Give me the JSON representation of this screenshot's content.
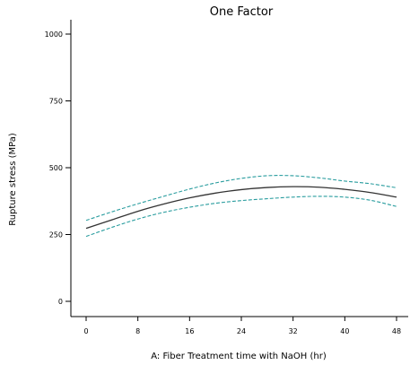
{
  "chart_data": {
    "type": "line",
    "title": "One Factor",
    "xlabel": "A: Fiber Treatment time with NaOH (hr)",
    "ylabel": "Rupture stress (MPa)",
    "xlim": [
      0,
      48
    ],
    "ylim": [
      0,
      1000
    ],
    "x_ticks": [
      "0",
      "8",
      "16",
      "24",
      "32",
      "40",
      "48"
    ],
    "y_ticks": [
      "0",
      "250",
      "500",
      "750",
      "1000"
    ],
    "grid": false,
    "colors": {
      "prediction": "#333333",
      "interval": "#2a9d9f"
    },
    "x": [
      0,
      4,
      8,
      12,
      16,
      20,
      24,
      28,
      32,
      36,
      40,
      44,
      48
    ],
    "series": [
      {
        "role": "prediction",
        "style": "solid",
        "values": [
          273,
          305,
          337,
          364,
          387,
          405,
          418,
          426,
          429,
          427,
          419,
          407,
          390
        ]
      },
      {
        "role": "upper",
        "style": "dashed",
        "values": [
          303,
          335,
          365,
          393,
          420,
          443,
          460,
          470,
          470,
          462,
          450,
          440,
          425
        ]
      },
      {
        "role": "lower",
        "style": "dashed",
        "values": [
          243,
          277,
          308,
          333,
          352,
          367,
          377,
          384,
          390,
          393,
          390,
          378,
          355
        ]
      }
    ]
  }
}
